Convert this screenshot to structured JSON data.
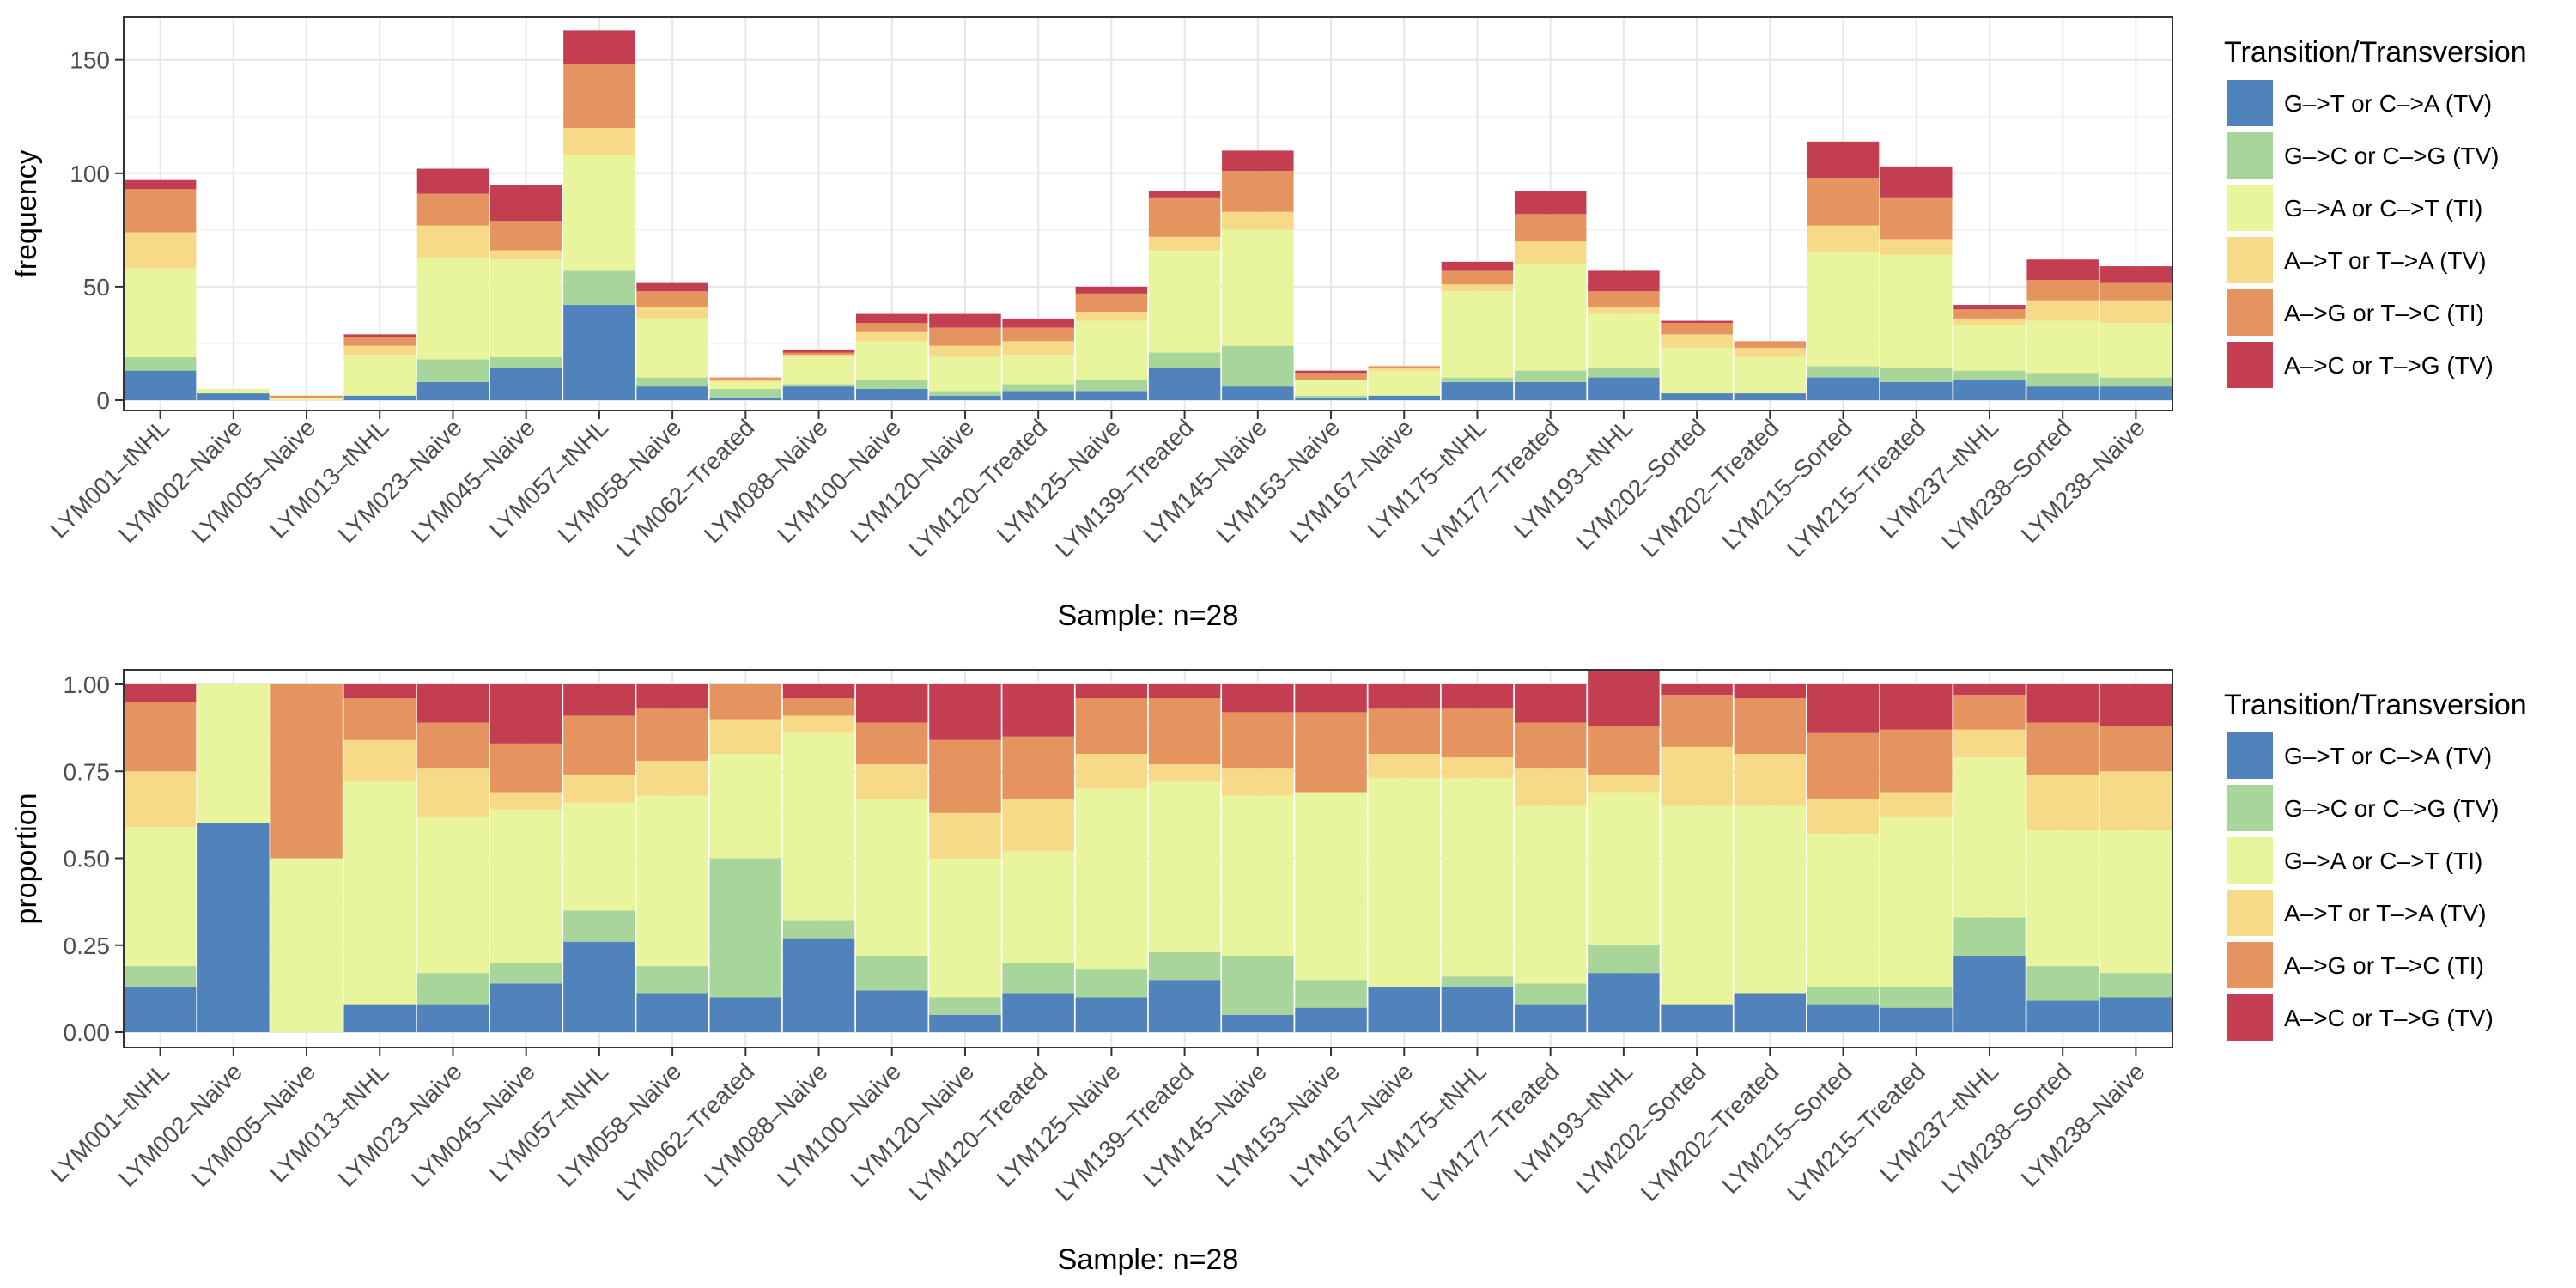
{
  "chart_data": [
    {
      "type": "bar",
      "stacked": true,
      "title": "",
      "xlabel": "Sample: n=28",
      "ylabel": "frequency",
      "ylim": [
        0,
        162
      ],
      "yticks": [
        0,
        50,
        100,
        150
      ],
      "ytick_labels": [
        "0",
        "50",
        "100",
        "150"
      ],
      "grid": true,
      "legend_position": "right",
      "legend_title": "Transition/Transversion",
      "categories": [
        "LYM001-tNHL",
        "LYM002-Naive",
        "LYM005-Naive",
        "LYM013-tNHL",
        "LYM023-Naive",
        "LYM045-Naive",
        "LYM057-tNHL",
        "LYM058-Naive",
        "LYM062-Treated",
        "LYM088-Naive",
        "LYM100-Naive",
        "LYM120-Naive",
        "LYM120-Treated",
        "LYM125-Naive",
        "LYM139-Treated",
        "LYM145-Naive",
        "LYM153-Naive",
        "LYM167-Naive",
        "LYM175-tNHL",
        "LYM177-Treated",
        "LYM193-tNHL",
        "LYM202-Sorted",
        "LYM202-Treated",
        "LYM215-Sorted",
        "LYM215-Treated",
        "LYM237-tNHL",
        "LYM238-Sorted",
        "LYM238-Naive"
      ],
      "category_labels": [
        "LYM001–tNHL",
        "LYM002–Naive",
        "LYM005–Naive",
        "LYM013–tNHL",
        "LYM023–Naive",
        "LYM045–Naive",
        "LYM057–tNHL",
        "LYM058–Naive",
        "LYM062–Treated",
        "LYM088–Naive",
        "LYM100–Naive",
        "LYM120–Naive",
        "LYM120–Treated",
        "LYM125–Naive",
        "LYM139–Treated",
        "LYM145–Naive",
        "LYM153–Naive",
        "LYM167–Naive",
        "LYM175–tNHL",
        "LYM177–Treated",
        "LYM193–tNHL",
        "LYM202–Sorted",
        "LYM202–Treated",
        "LYM215–Sorted",
        "LYM215–Treated",
        "LYM237–tNHL",
        "LYM238–Sorted",
        "LYM238–Naive"
      ],
      "series": [
        {
          "name": "G–>T or C–>A (TV)",
          "color": "#5083bb",
          "values": [
            13,
            3,
            0,
            2,
            8,
            14,
            42,
            6,
            1,
            6,
            5,
            2,
            4,
            4,
            14,
            6,
            1,
            2,
            8,
            8,
            10,
            3,
            3,
            10,
            8,
            9,
            6,
            6
          ]
        },
        {
          "name": "G–>C or C–>G (TV)",
          "color": "#a8d69a",
          "values": [
            6,
            0,
            0,
            0,
            10,
            5,
            15,
            4,
            4,
            1,
            4,
            2,
            3,
            5,
            7,
            18,
            1,
            0,
            2,
            5,
            4,
            0,
            0,
            5,
            6,
            4,
            6,
            4
          ]
        },
        {
          "name": "G–>A or C–>T (TI)",
          "color": "#e9f59d",
          "values": [
            39,
            2,
            1,
            18,
            45,
            43,
            51,
            26,
            3,
            12,
            17,
            15,
            13,
            26,
            45,
            51,
            7,
            11,
            38,
            47,
            24,
            20,
            16,
            50,
            50,
            20,
            23,
            24
          ]
        },
        {
          "name": "A–>T or T–>A (TV)",
          "color": "#f7da88",
          "values": [
            16,
            0,
            0,
            4,
            14,
            4,
            12,
            5,
            1,
            1,
            4,
            5,
            6,
            4,
            6,
            8,
            0,
            1,
            3,
            10,
            3,
            6,
            4,
            12,
            7,
            3,
            9,
            10
          ]
        },
        {
          "name": "A–>G or T–>C (TI)",
          "color": "#e59460",
          "values": [
            19,
            0,
            1,
            4,
            14,
            13,
            28,
            7,
            1,
            1,
            4,
            8,
            6,
            8,
            17,
            18,
            3,
            1,
            6,
            12,
            7,
            5,
            3,
            21,
            18,
            4,
            9,
            8
          ]
        },
        {
          "name": "A–>C or T–>G (TV)",
          "color": "#c43e52",
          "values": [
            4,
            0,
            0,
            1,
            11,
            16,
            15,
            4,
            0,
            1,
            4,
            6,
            4,
            3,
            3,
            9,
            1,
            0,
            4,
            10,
            9,
            1,
            0,
            16,
            14,
            2,
            9,
            7
          ]
        }
      ]
    },
    {
      "type": "bar",
      "stacked": true,
      "title": "",
      "xlabel": "Sample: n=28",
      "ylabel": "proportion",
      "ylim": [
        0,
        1
      ],
      "yticks": [
        0,
        0.25,
        0.5,
        0.75,
        1.0
      ],
      "ytick_labels": [
        "0.00",
        "0.25",
        "0.50",
        "0.75",
        "1.00"
      ],
      "grid": true,
      "legend_position": "right",
      "legend_title": "Transition/Transversion",
      "categories": [
        "LYM001-tNHL",
        "LYM002-Naive",
        "LYM005-Naive",
        "LYM013-tNHL",
        "LYM023-Naive",
        "LYM045-Naive",
        "LYM057-tNHL",
        "LYM058-Naive",
        "LYM062-Treated",
        "LYM088-Naive",
        "LYM100-Naive",
        "LYM120-Naive",
        "LYM120-Treated",
        "LYM125-Naive",
        "LYM139-Treated",
        "LYM145-Naive",
        "LYM153-Naive",
        "LYM167-Naive",
        "LYM175-tNHL",
        "LYM177-Treated",
        "LYM193-tNHL",
        "LYM202-Sorted",
        "LYM202-Treated",
        "LYM215-Sorted",
        "LYM215-Treated",
        "LYM237-tNHL",
        "LYM238-Sorted",
        "LYM238-Naive"
      ],
      "category_labels": [
        "LYM001–tNHL",
        "LYM002–Naive",
        "LYM005–Naive",
        "LYM013–tNHL",
        "LYM023–Naive",
        "LYM045–Naive",
        "LYM057–tNHL",
        "LYM058–Naive",
        "LYM062–Treated",
        "LYM088–Naive",
        "LYM100–Naive",
        "LYM120–Naive",
        "LYM120–Treated",
        "LYM125–Naive",
        "LYM139–Treated",
        "LYM145–Naive",
        "LYM153–Naive",
        "LYM167–Naive",
        "LYM175–tNHL",
        "LYM177–Treated",
        "LYM193–tNHL",
        "LYM202–Sorted",
        "LYM202–Treated",
        "LYM215–Sorted",
        "LYM215–Treated",
        "LYM237–tNHL",
        "LYM238–Sorted",
        "LYM238–Naive"
      ],
      "series": [
        {
          "name": "G–>T or C–>A (TV)",
          "color": "#5083bb",
          "values": [
            0.13,
            0.6,
            0.0,
            0.08,
            0.08,
            0.14,
            0.26,
            0.11,
            0.1,
            0.27,
            0.12,
            0.05,
            0.11,
            0.1,
            0.15,
            0.05,
            0.07,
            0.13,
            0.13,
            0.08,
            0.17,
            0.08,
            0.11,
            0.08,
            0.07,
            0.22,
            0.09,
            0.1
          ]
        },
        {
          "name": "G–>C or C–>G (TV)",
          "color": "#a8d69a",
          "values": [
            0.06,
            0.0,
            0.0,
            0.0,
            0.09,
            0.06,
            0.09,
            0.08,
            0.4,
            0.05,
            0.1,
            0.05,
            0.09,
            0.08,
            0.08,
            0.17,
            0.08,
            0.0,
            0.03,
            0.06,
            0.08,
            0.0,
            0.0,
            0.05,
            0.06,
            0.11,
            0.1,
            0.07
          ]
        },
        {
          "name": "G–>A or C–>T (TI)",
          "color": "#e9f59d",
          "values": [
            0.4,
            0.4,
            0.5,
            0.64,
            0.45,
            0.44,
            0.31,
            0.49,
            0.3,
            0.54,
            0.45,
            0.4,
            0.32,
            0.52,
            0.49,
            0.46,
            0.54,
            0.6,
            0.57,
            0.51,
            0.44,
            0.57,
            0.54,
            0.44,
            0.49,
            0.46,
            0.39,
            0.41
          ]
        },
        {
          "name": "A–>T or T–>A (TV)",
          "color": "#f7da88",
          "values": [
            0.16,
            0.0,
            0.0,
            0.12,
            0.14,
            0.05,
            0.08,
            0.1,
            0.1,
            0.05,
            0.1,
            0.13,
            0.15,
            0.1,
            0.05,
            0.08,
            0.0,
            0.07,
            0.06,
            0.11,
            0.05,
            0.17,
            0.15,
            0.1,
            0.07,
            0.08,
            0.16,
            0.17
          ]
        },
        {
          "name": "A–>G or T–>C (TI)",
          "color": "#e59460",
          "values": [
            0.2,
            0.0,
            0.5,
            0.12,
            0.13,
            0.14,
            0.17,
            0.15,
            0.1,
            0.05,
            0.12,
            0.21,
            0.18,
            0.16,
            0.19,
            0.16,
            0.23,
            0.13,
            0.14,
            0.13,
            0.14,
            0.15,
            0.16,
            0.19,
            0.18,
            0.1,
            0.15,
            0.13
          ]
        },
        {
          "name": "A–>C or T–>G (TV)",
          "color": "#c43e52",
          "values": [
            0.05,
            0.0,
            0.0,
            0.04,
            0.11,
            0.17,
            0.09,
            0.07,
            0.0,
            0.04,
            0.11,
            0.16,
            0.15,
            0.04,
            0.04,
            0.08,
            0.08,
            0.07,
            0.07,
            0.11,
            0.16,
            0.03,
            0.04,
            0.14,
            0.13,
            0.03,
            0.11,
            0.12
          ]
        }
      ]
    }
  ]
}
